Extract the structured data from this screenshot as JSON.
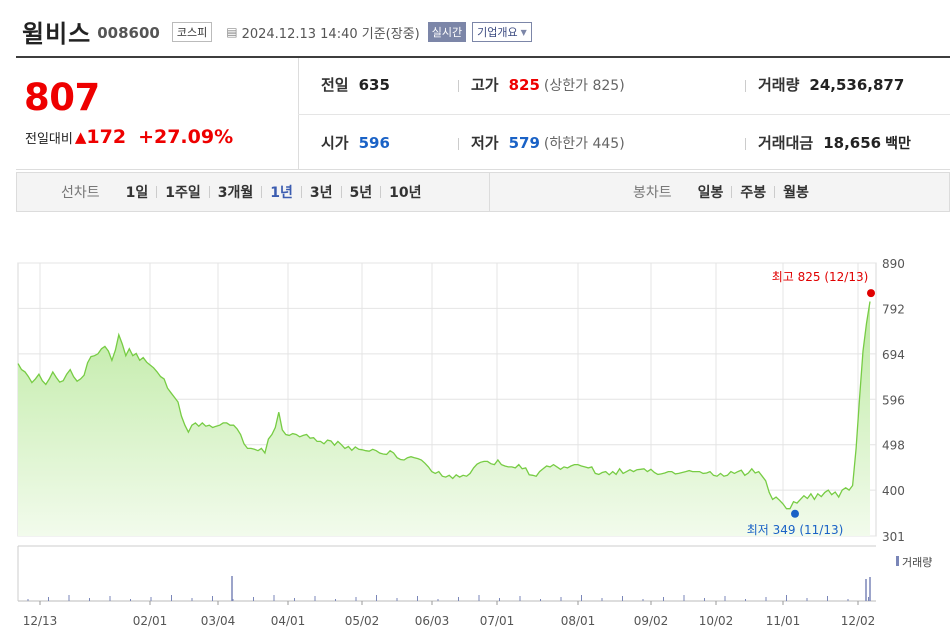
{
  "header": {
    "name": "윌비스",
    "code": "008600",
    "market": "코스피",
    "datetime": "2024.12.13 14:40",
    "basis": "기준(장중)",
    "realtime": "실시간",
    "company_info": "기업개요"
  },
  "quote": {
    "price": "807",
    "change_label": "전일대비",
    "change_abs": "172",
    "change_pct": "+27.09%",
    "prev_close_label": "전일",
    "prev_close": "635",
    "open_label": "시가",
    "open": "596",
    "high_label": "고가",
    "high": "825",
    "upper_limit": "(상한가 825)",
    "low_label": "저가",
    "low": "579",
    "lower_limit": "(하한가 445)",
    "volume_label": "거래량",
    "volume": "24,536,877",
    "value_label": "거래대금",
    "value": "18,656",
    "value_unit": "백만"
  },
  "tabs": {
    "line_title": "선차트",
    "line": [
      "1일",
      "1주일",
      "3개월",
      "1년",
      "3년",
      "5년",
      "10년"
    ],
    "line_active": "1년",
    "candle_title": "봉차트",
    "candle": [
      "일봉",
      "주봉",
      "월봉"
    ]
  },
  "colors": {
    "up": "#e00000",
    "down": "#1a62c6",
    "line": "#77cc44",
    "area_top": "#bdeaa2",
    "area_bottom": "#f2fbec",
    "grid": "#e4e4e4",
    "volume": "#7a86b8"
  },
  "chart_data": {
    "type": "area",
    "y_ticks": [
      "890",
      "792",
      "694",
      "596",
      "498",
      "400",
      "301"
    ],
    "ylim": [
      301,
      890
    ],
    "x_ticks": [
      "12/13",
      "02/01",
      "03/04",
      "04/01",
      "05/02",
      "06/03",
      "07/01",
      "08/01",
      "09/02",
      "10/02",
      "11/01",
      "12/02"
    ],
    "grid": true,
    "series": [
      {
        "values": [
          673,
          660,
          655,
          645,
          632,
          640,
          650,
          636,
          628,
          640,
          655,
          643,
          633,
          636,
          650,
          660,
          645,
          635,
          640,
          648,
          675,
          688,
          690,
          694,
          705,
          710,
          700,
          680,
          702,
          735,
          715,
          690,
          705,
          690,
          695,
          680,
          686,
          676,
          670,
          664,
          655,
          645,
          640,
          620,
          610,
          600,
          590,
          560,
          540,
          525,
          540,
          545,
          538,
          545,
          538,
          540,
          535,
          538,
          540,
          545,
          545,
          540,
          540,
          532,
          520,
          500,
          490,
          490,
          488,
          485,
          490,
          480,
          510,
          520,
          535,
          568,
          530,
          520,
          518,
          522,
          520,
          515,
          518,
          520,
          512,
          513,
          505,
          505,
          500,
          508,
          506,
          497,
          505,
          498,
          490,
          494,
          486,
          493,
          488,
          487,
          485,
          484,
          488,
          485,
          480,
          478,
          477,
          485,
          480,
          470,
          466,
          465,
          470,
          472,
          470,
          468,
          465,
          458,
          450,
          440,
          436,
          440,
          430,
          428,
          432,
          425,
          433,
          428,
          432,
          430,
          436,
          448,
          456,
          460,
          462,
          462,
          457,
          455,
          465,
          455,
          452,
          450,
          450,
          448,
          455,
          446,
          448,
          433,
          432,
          430,
          440,
          446,
          452,
          450,
          455,
          450,
          445,
          450,
          448,
          452,
          455,
          455,
          452,
          450,
          448,
          450,
          436,
          434,
          438,
          440,
          433,
          440,
          434,
          446,
          436,
          440,
          444,
          440,
          444,
          445,
          446,
          440,
          445,
          438,
          434,
          435,
          437,
          440,
          440,
          435,
          436,
          438,
          440,
          442,
          440,
          440,
          440,
          436,
          437,
          440,
          432,
          430,
          436,
          430,
          432,
          440,
          436,
          440,
          443,
          432,
          437,
          446,
          437,
          440,
          430,
          420,
          395,
          380,
          385,
          378,
          370,
          360,
          360,
          375,
          372,
          380,
          388,
          382,
          392,
          380,
          392,
          386,
          395,
          400,
          390,
          396,
          385,
          400,
          405,
          400,
          410,
          490,
          600,
          700,
          760,
          807
        ]
      }
    ],
    "max_label": "최고 825 (12/13)",
    "min_label": "최저 349 (11/13)",
    "volume_label": "거래량",
    "volume_series": [
      {
        "x": "03/04",
        "value": 25
      },
      {
        "x": "12/12",
        "value": 22
      },
      {
        "x": "12/13",
        "value": 24
      }
    ]
  }
}
